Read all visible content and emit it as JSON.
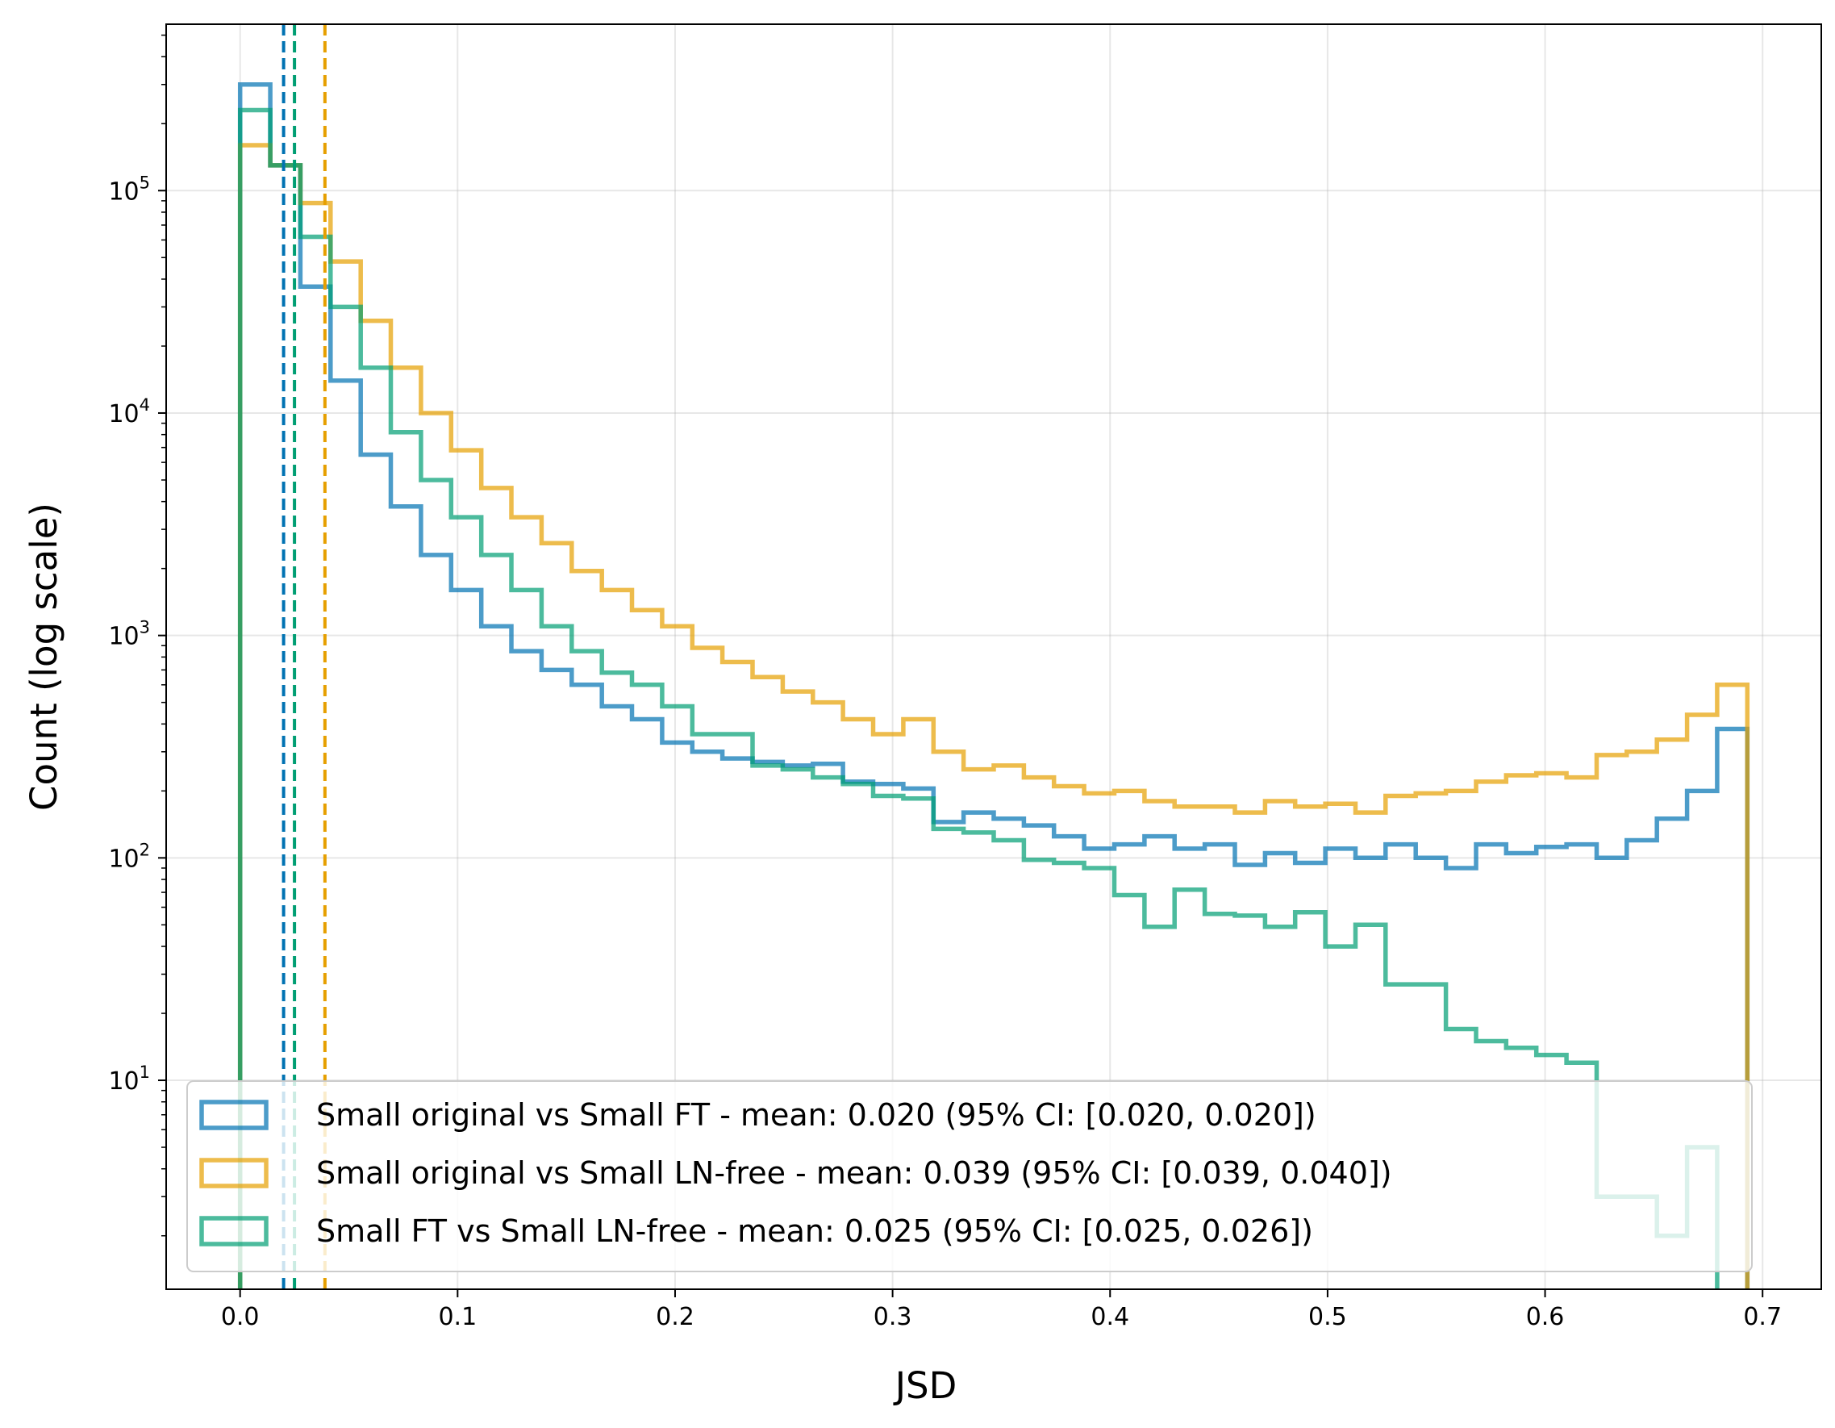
{
  "chart_data": {
    "type": "histogram",
    "xlabel": "JSD",
    "ylabel": "Count (log scale)",
    "xlim": [
      -0.034,
      0.727
    ],
    "ylim": [
      1.15,
      560000
    ],
    "yscale": "log",
    "grid": true,
    "legend_position": "lower-left",
    "x_ticks": [
      0.0,
      0.1,
      0.2,
      0.3,
      0.4,
      0.5,
      0.6,
      0.7
    ],
    "x_tick_labels": [
      "0.0",
      "0.1",
      "0.2",
      "0.3",
      "0.4",
      "0.5",
      "0.6",
      "0.7"
    ],
    "y_ticks": [
      10,
      100,
      1000,
      10000,
      100000
    ],
    "y_tick_labels": [
      {
        "base": "10",
        "exp": "1"
      },
      {
        "base": "10",
        "exp": "2"
      },
      {
        "base": "10",
        "exp": "3"
      },
      {
        "base": "10",
        "exp": "4"
      },
      {
        "base": "10",
        "exp": "5"
      }
    ],
    "bins": {
      "start": 0.0,
      "width": 0.01386,
      "count": 50
    },
    "series": [
      {
        "name": "Small original vs Small FT - mean: 0.020 (95% CI: [0.020, 0.020])",
        "color": "#0072B2",
        "mean": 0.02,
        "counts": [
          300000,
          130000,
          37000,
          14000,
          6500,
          3800,
          2300,
          1600,
          1100,
          850,
          700,
          600,
          480,
          420,
          330,
          300,
          280,
          270,
          260,
          265,
          220,
          215,
          205,
          145,
          160,
          150,
          140,
          125,
          110,
          115,
          125,
          110,
          115,
          93,
          105,
          95,
          110,
          100,
          115,
          100,
          90,
          115,
          105,
          112,
          115,
          100,
          120,
          150,
          200,
          380
        ]
      },
      {
        "name": "Small original vs Small LN-free - mean: 0.039 (95% CI: [0.039, 0.040])",
        "color": "#E69F00",
        "mean": 0.039,
        "counts": [
          160000,
          130000,
          88000,
          48000,
          26000,
          16000,
          10000,
          6800,
          4600,
          3400,
          2600,
          1950,
          1600,
          1300,
          1100,
          880,
          760,
          650,
          560,
          500,
          420,
          360,
          420,
          300,
          250,
          260,
          230,
          210,
          195,
          200,
          180,
          170,
          170,
          160,
          180,
          170,
          175,
          160,
          190,
          195,
          200,
          220,
          235,
          240,
          230,
          290,
          300,
          340,
          440,
          600
        ]
      },
      {
        "name": "Small FT vs Small LN-free - mean: 0.025 (95% CI: [0.025, 0.026])",
        "color": "#009E73",
        "mean": 0.025,
        "counts": [
          230000,
          130000,
          62000,
          30000,
          16000,
          8200,
          5000,
          3400,
          2300,
          1600,
          1100,
          850,
          680,
          600,
          480,
          360,
          360,
          260,
          250,
          230,
          215,
          190,
          185,
          135,
          130,
          120,
          98,
          95,
          90,
          68,
          49,
          72,
          56,
          55,
          49,
          57,
          40,
          50,
          27,
          27,
          17,
          15,
          14,
          13,
          12,
          3,
          3,
          2,
          5,
          1
        ]
      }
    ]
  }
}
